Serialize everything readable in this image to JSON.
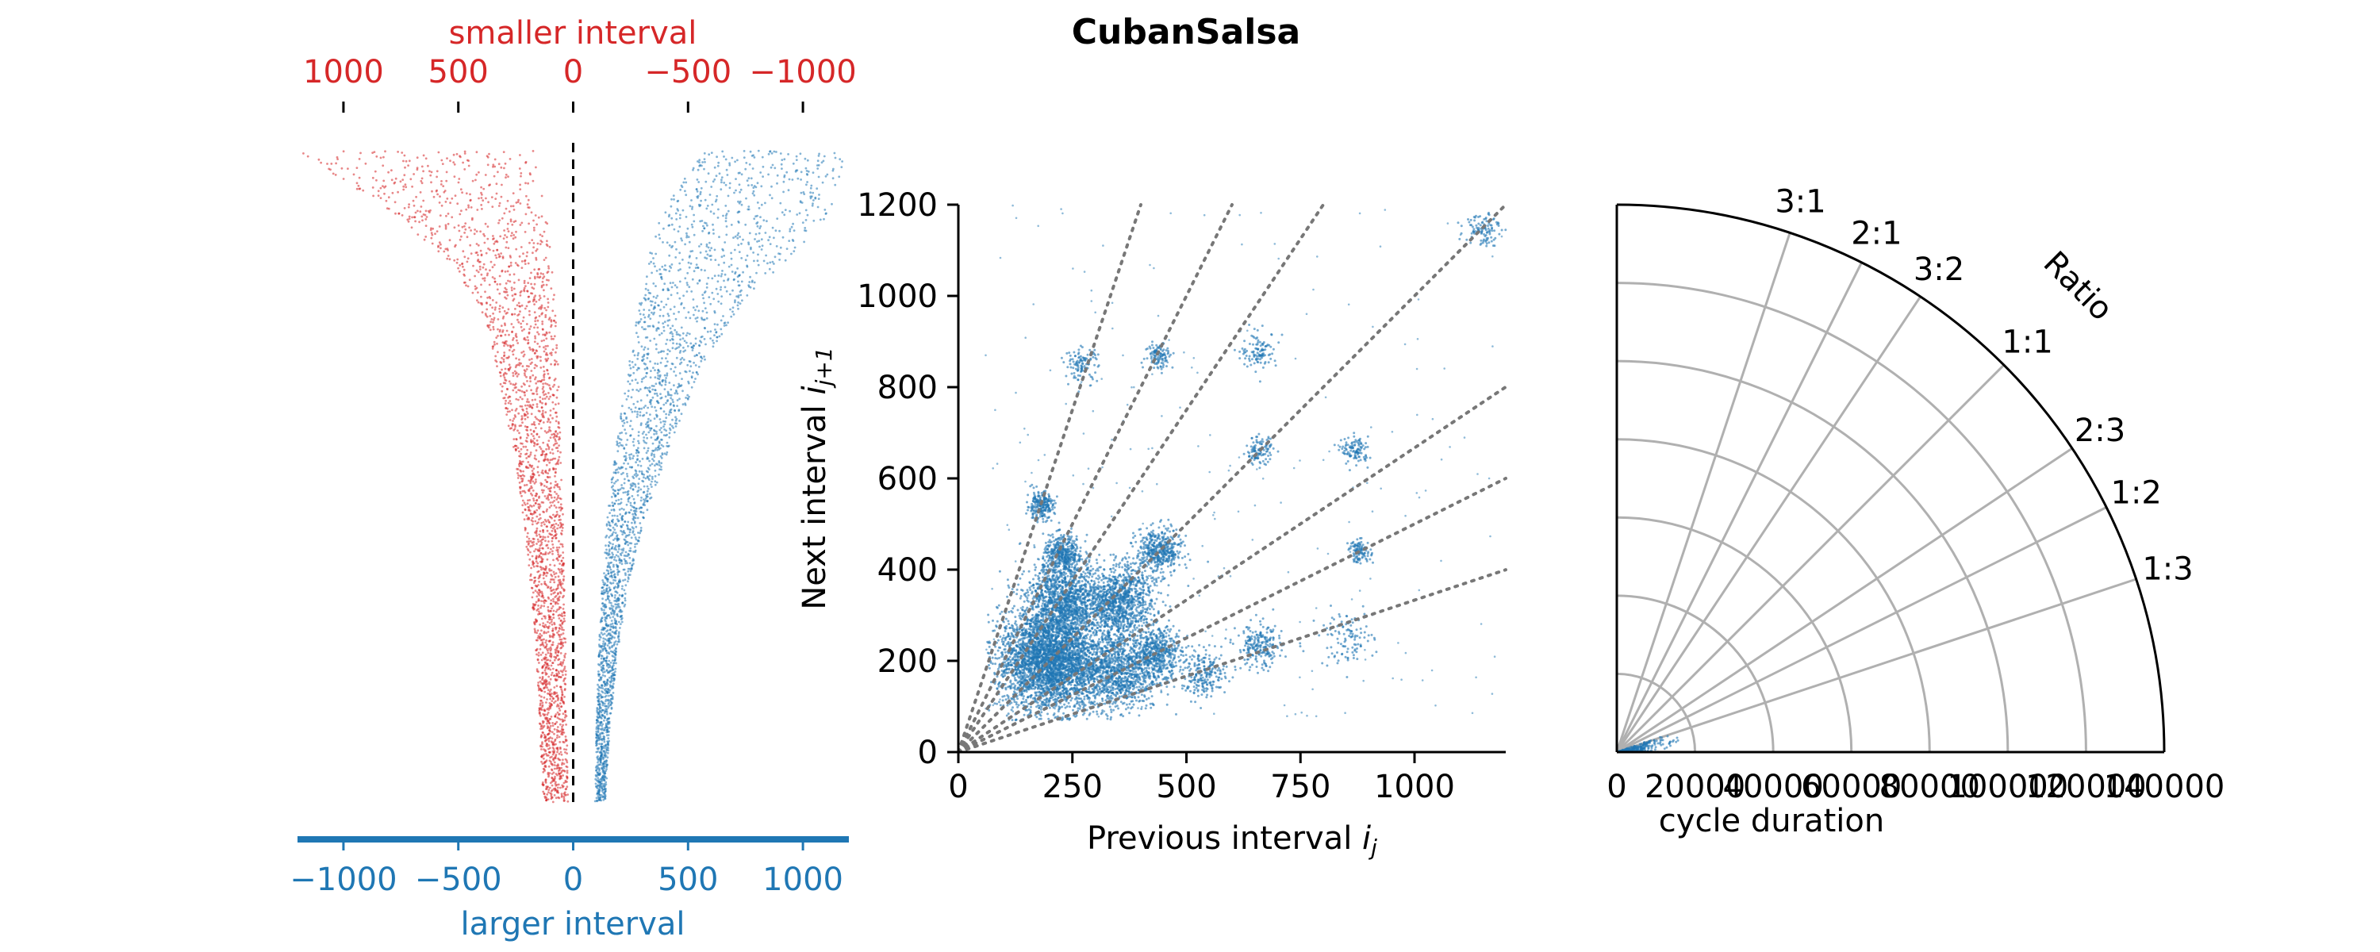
{
  "figure": {
    "title": "CubanSalsa"
  },
  "chart_data": [
    {
      "type": "scatter",
      "panel": "interval-difference",
      "top_axis": {
        "label": "smaller interval",
        "ticks": [
          1000,
          500,
          0,
          -500,
          -1000
        ],
        "tick_labels": [
          "1000",
          "500",
          "0",
          "−500",
          "−1000"
        ],
        "color": "#d62728"
      },
      "bottom_axis": {
        "label": "larger interval",
        "ticks": [
          -1000,
          -500,
          0,
          500,
          1000
        ],
        "tick_labels": [
          "−1000",
          "−500",
          "0",
          "500",
          "1000"
        ],
        "color": "#1f77b4"
      },
      "xlim": [
        -1200,
        1200
      ],
      "reference_line": 0,
      "series": [
        {
          "color": "#d62728",
          "left_edge_x": [
            -1200,
            -720,
            -430,
            -330,
            -270,
            -220,
            -185,
            -160,
            -145,
            -130
          ],
          "right_edge_x": [
            -170,
            -110,
            -80,
            -65,
            -55,
            -45,
            -38,
            -32,
            -28,
            -22
          ],
          "rank_fraction": [
            0.0,
            0.05,
            0.12,
            0.22,
            0.35,
            0.5,
            0.65,
            0.8,
            0.93,
            1.0
          ]
        },
        {
          "color": "#1f77b4",
          "left_edge_x": [
            560,
            360,
            290,
            240,
            190,
            150,
            125,
            110,
            100,
            95
          ],
          "right_edge_x": [
            1200,
            1100,
            760,
            560,
            430,
            320,
            240,
            190,
            160,
            140
          ],
          "rank_fraction": [
            0.0,
            0.05,
            0.12,
            0.22,
            0.35,
            0.5,
            0.65,
            0.8,
            0.93,
            1.0
          ]
        }
      ]
    },
    {
      "type": "scatter",
      "panel": "return-map",
      "xlabel": "Previous interval",
      "xlabel_sub": "j",
      "ylabel": "Next interval",
      "ylabel_sub": "j+1",
      "xlim": [
        0,
        1200
      ],
      "ylim": [
        0,
        1200
      ],
      "xticks": [
        0,
        250,
        500,
        750,
        1000
      ],
      "yticks": [
        0,
        200,
        400,
        600,
        800,
        1000,
        1200
      ],
      "ratio_slopes": [
        3,
        2,
        1.5,
        1,
        0.667,
        0.5,
        0.333
      ],
      "clusters": [
        {
          "x": 200,
          "y": 200,
          "sd": 55,
          "weight": 30
        },
        {
          "x": 230,
          "y": 330,
          "sd": 40,
          "weight": 10
        },
        {
          "x": 350,
          "y": 330,
          "sd": 40,
          "weight": 10
        },
        {
          "x": 350,
          "y": 180,
          "sd": 45,
          "weight": 10
        },
        {
          "x": 230,
          "y": 430,
          "sd": 22,
          "weight": 4
        },
        {
          "x": 440,
          "y": 440,
          "sd": 25,
          "weight": 4
        },
        {
          "x": 440,
          "y": 220,
          "sd": 25,
          "weight": 4
        },
        {
          "x": 180,
          "y": 540,
          "sd": 15,
          "weight": 2
        },
        {
          "x": 270,
          "y": 850,
          "sd": 18,
          "weight": 1
        },
        {
          "x": 440,
          "y": 870,
          "sd": 15,
          "weight": 1
        },
        {
          "x": 660,
          "y": 880,
          "sd": 20,
          "weight": 1
        },
        {
          "x": 870,
          "y": 660,
          "sd": 15,
          "weight": 1
        },
        {
          "x": 660,
          "y": 660,
          "sd": 15,
          "weight": 1
        },
        {
          "x": 660,
          "y": 230,
          "sd": 25,
          "weight": 2
        },
        {
          "x": 880,
          "y": 440,
          "sd": 12,
          "weight": 1
        },
        {
          "x": 540,
          "y": 170,
          "sd": 25,
          "weight": 2
        },
        {
          "x": 850,
          "y": 250,
          "sd": 30,
          "weight": 1
        },
        {
          "x": 1150,
          "y": 1150,
          "sd": 20,
          "weight": 1
        }
      ]
    },
    {
      "type": "scatter",
      "panel": "polar",
      "xlabel": "cycle duration",
      "angular_label": "Ratio",
      "rlim": [
        0,
        140000
      ],
      "rticks": [
        0,
        20000,
        40000,
        60000,
        80000,
        100000,
        120000,
        140000
      ],
      "rtick_labels": [
        "0",
        "20000",
        "40000",
        "60000",
        "80000",
        "100000",
        "120000",
        "140000"
      ],
      "ratios": [
        {
          "label": "3:1",
          "slope": 3
        },
        {
          "label": "2:1",
          "slope": 2
        },
        {
          "label": "3:2",
          "slope": 1.5
        },
        {
          "label": "1:1",
          "slope": 1
        },
        {
          "label": "2:3",
          "slope": 0.667
        },
        {
          "label": "1:2",
          "slope": 0.5
        },
        {
          "label": "1:3",
          "slope": 0.333
        }
      ],
      "theta_extent_deg": [
        0,
        90
      ]
    }
  ]
}
